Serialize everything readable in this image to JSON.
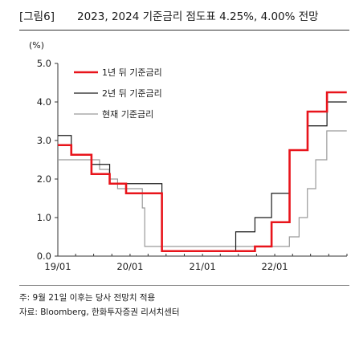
{
  "header": {
    "tag": "[그림6]",
    "title": "2023, 2024 기준금리 점도표 4.25%, 4.00% 전망"
  },
  "chart_data": {
    "type": "line",
    "unit_label": "(%)",
    "xlabel": "",
    "ylabel": "",
    "ylim": [
      0,
      5
    ],
    "yticks": [
      "0.0",
      "1.0",
      "2.0",
      "3.0",
      "4.0",
      "5.0"
    ],
    "xlim": [
      "2019-01-01",
      "2023-01-01"
    ],
    "xticks": [
      {
        "date": "2019-01-01",
        "label": "19/01"
      },
      {
        "date": "2020-01-01",
        "label": "20/01"
      },
      {
        "date": "2021-01-01",
        "label": "21/01"
      },
      {
        "date": "2022-01-01",
        "label": "22/01"
      }
    ],
    "grid": false,
    "legend_position": "top-left",
    "series": [
      {
        "name": "1년 뒤 기준금리",
        "color": "#e8141b",
        "points": [
          [
            "2019-01-01",
            2.88
          ],
          [
            "2019-03-10",
            2.88
          ],
          [
            "2019-03-10",
            2.63
          ],
          [
            "2019-06-20",
            2.63
          ],
          [
            "2019-06-20",
            2.13
          ],
          [
            "2019-09-20",
            2.13
          ],
          [
            "2019-09-20",
            1.88
          ],
          [
            "2019-12-12",
            1.88
          ],
          [
            "2019-12-12",
            1.63
          ],
          [
            "2020-06-10",
            1.63
          ],
          [
            "2020-06-10",
            0.13
          ],
          [
            "2021-06-18",
            0.13
          ],
          [
            "2021-06-18",
            0.13
          ],
          [
            "2021-09-23",
            0.13
          ],
          [
            "2021-09-23",
            0.25
          ],
          [
            "2021-12-16",
            0.25
          ],
          [
            "2021-12-16",
            0.88
          ],
          [
            "2022-03-17",
            0.88
          ],
          [
            "2022-03-17",
            2.75
          ],
          [
            "2022-06-16",
            2.75
          ],
          [
            "2022-06-16",
            3.75
          ],
          [
            "2022-09-22",
            3.75
          ],
          [
            "2022-09-22",
            4.25
          ],
          [
            "2022-12-31",
            4.25
          ]
        ]
      },
      {
        "name": "2년 뒤 기준금리",
        "color": "#1a1a1a",
        "points": [
          [
            "2019-01-01",
            3.13
          ],
          [
            "2019-03-10",
            3.13
          ],
          [
            "2019-03-10",
            2.63
          ],
          [
            "2019-06-20",
            2.63
          ],
          [
            "2019-06-20",
            2.38
          ],
          [
            "2019-09-20",
            2.38
          ],
          [
            "2019-09-20",
            1.88
          ],
          [
            "2020-06-10",
            1.88
          ],
          [
            "2020-06-10",
            0.13
          ],
          [
            "2021-06-18",
            0.13
          ],
          [
            "2021-06-18",
            0.63
          ],
          [
            "2021-09-23",
            0.63
          ],
          [
            "2021-09-23",
            1.0
          ],
          [
            "2021-12-16",
            1.0
          ],
          [
            "2021-12-16",
            1.63
          ],
          [
            "2022-03-17",
            1.63
          ],
          [
            "2022-03-17",
            2.75
          ],
          [
            "2022-06-16",
            2.75
          ],
          [
            "2022-06-16",
            3.38
          ],
          [
            "2022-09-22",
            3.38
          ],
          [
            "2022-09-22",
            4.0
          ],
          [
            "2022-12-31",
            4.0
          ]
        ]
      },
      {
        "name": "현재 기준금리",
        "color": "#9a9a9a",
        "points": [
          [
            "2019-01-01",
            2.5
          ],
          [
            "2019-07-31",
            2.5
          ],
          [
            "2019-07-31",
            2.25
          ],
          [
            "2019-09-18",
            2.25
          ],
          [
            "2019-09-18",
            2.0
          ],
          [
            "2019-10-30",
            2.0
          ],
          [
            "2019-10-30",
            1.75
          ],
          [
            "2020-03-03",
            1.75
          ],
          [
            "2020-03-03",
            1.25
          ],
          [
            "2020-03-15",
            1.25
          ],
          [
            "2020-03-15",
            0.25
          ],
          [
            "2022-03-16",
            0.25
          ],
          [
            "2022-03-16",
            0.5
          ],
          [
            "2022-05-04",
            0.5
          ],
          [
            "2022-05-04",
            1.0
          ],
          [
            "2022-06-15",
            1.0
          ],
          [
            "2022-06-15",
            1.75
          ],
          [
            "2022-07-27",
            1.75
          ],
          [
            "2022-07-27",
            2.5
          ],
          [
            "2022-09-21",
            2.5
          ],
          [
            "2022-09-21",
            3.25
          ],
          [
            "2022-12-31",
            3.25
          ]
        ]
      }
    ]
  },
  "footnotes": {
    "note": "주: 9월 21일 이후는 당사 전망치 적용",
    "source": "자료: Bloomberg, 한화투자증권 리서치센터"
  }
}
